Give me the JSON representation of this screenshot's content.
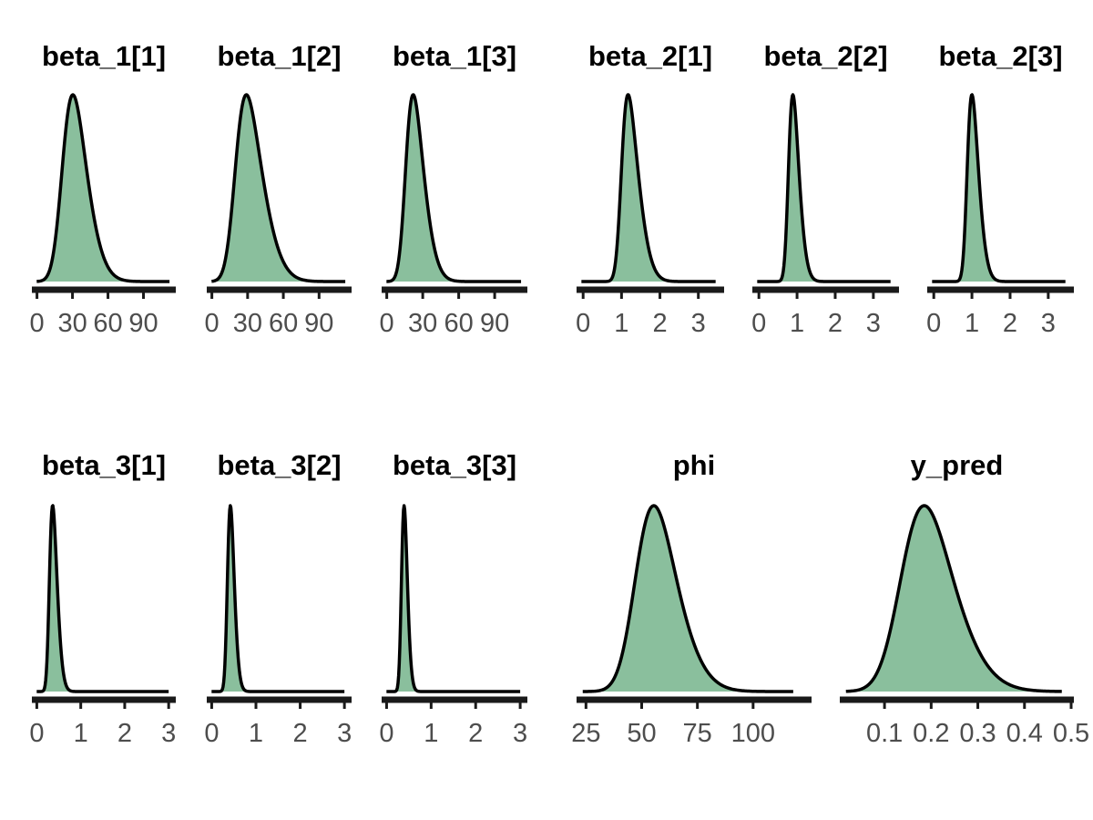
{
  "style": {
    "fill_color": "#8abf9d",
    "line_color": "#000000",
    "axis_color": "#1a1a1a",
    "tick_label_color": "#4d4d4d"
  },
  "chart_data": [
    {
      "type": "area",
      "title": "beta_1[1]",
      "xlim": [
        -2,
        115
      ],
      "ticks": [
        0,
        30,
        60,
        90
      ],
      "tick_labels": [
        "0",
        "30",
        "60",
        "90"
      ],
      "density": {
        "type": "skewnormal",
        "loc": 22,
        "scale": 16,
        "alpha": 2.2,
        "tail_end": 112
      }
    },
    {
      "type": "area",
      "title": "beta_1[2]",
      "xlim": [
        -2,
        115
      ],
      "ticks": [
        0,
        30,
        60,
        90
      ],
      "tick_labels": [
        "0",
        "30",
        "60",
        "90"
      ],
      "density": {
        "type": "skewnormal",
        "loc": 20,
        "scale": 18,
        "alpha": 2.6,
        "tail_end": 112
      }
    },
    {
      "type": "area",
      "title": "beta_1[3]",
      "xlim": [
        -2,
        115
      ],
      "ticks": [
        0,
        30,
        60,
        90
      ],
      "tick_labels": [
        "0",
        "30",
        "60",
        "90"
      ],
      "density": {
        "type": "skewnormal",
        "loc": 16,
        "scale": 12,
        "alpha": 2.5,
        "tail_end": 112
      }
    },
    {
      "type": "area",
      "title": "beta_2[1]",
      "xlim": [
        -0.1,
        3.6
      ],
      "ticks": [
        0,
        1,
        2,
        3
      ],
      "tick_labels": [
        "0",
        "1",
        "2",
        "3"
      ],
      "density": {
        "type": "skewnormal",
        "loc": 1.0,
        "scale": 0.36,
        "alpha": 3.0,
        "tail_end": 3.45
      }
    },
    {
      "type": "area",
      "title": "beta_2[2]",
      "xlim": [
        -0.1,
        3.6
      ],
      "ticks": [
        0,
        1,
        2,
        3
      ],
      "tick_labels": [
        "0",
        "1",
        "2",
        "3"
      ],
      "density": {
        "type": "skewnormal",
        "loc": 0.78,
        "scale": 0.22,
        "alpha": 2.5,
        "tail_end": 3.45
      }
    },
    {
      "type": "area",
      "title": "beta_2[3]",
      "xlim": [
        -0.1,
        3.6
      ],
      "ticks": [
        0,
        1,
        2,
        3
      ],
      "tick_labels": [
        "0",
        "1",
        "2",
        "3"
      ],
      "density": {
        "type": "skewnormal",
        "loc": 0.88,
        "scale": 0.24,
        "alpha": 2.6,
        "tail_end": 3.45
      }
    },
    {
      "type": "area",
      "title": "beta_3[1]",
      "xlim": [
        -0.05,
        3.1
      ],
      "ticks": [
        0,
        1,
        2,
        3
      ],
      "tick_labels": [
        "0",
        "1",
        "2",
        "3"
      ],
      "density": {
        "type": "skewnormal",
        "loc": 0.29,
        "scale": 0.14,
        "alpha": 2.5,
        "tail_end": 3.0
      }
    },
    {
      "type": "area",
      "title": "beta_3[2]",
      "xlim": [
        -0.05,
        3.1
      ],
      "ticks": [
        0,
        1,
        2,
        3
      ],
      "tick_labels": [
        "0",
        "1",
        "2",
        "3"
      ],
      "density": {
        "type": "skewnormal",
        "loc": 0.36,
        "scale": 0.12,
        "alpha": 2.2,
        "tail_end": 3.0
      }
    },
    {
      "type": "area",
      "title": "beta_3[3]",
      "xlim": [
        -0.05,
        3.1
      ],
      "ticks": [
        0,
        1,
        2,
        3
      ],
      "tick_labels": [
        "0",
        "1",
        "2",
        "3"
      ],
      "density": {
        "type": "skewnormal",
        "loc": 0.34,
        "scale": 0.1,
        "alpha": 2.0,
        "tail_end": 3.0
      }
    },
    {
      "type": "area",
      "title": "phi",
      "xlim": [
        22,
        125
      ],
      "ticks": [
        25,
        50,
        75,
        100
      ],
      "tick_labels": [
        "25",
        "50",
        "75",
        "100"
      ],
      "density": {
        "type": "skewnormal",
        "loc": 48,
        "scale": 14,
        "alpha": 2.0,
        "tail_end": 118
      }
    },
    {
      "type": "area",
      "title": "y_pred",
      "xlim": [
        0.01,
        0.5
      ],
      "ticks": [
        0.1,
        0.2,
        0.3,
        0.4,
        0.5
      ],
      "tick_labels": [
        "0.1",
        "0.2",
        "0.3",
        "0.4",
        "0.5"
      ],
      "density": {
        "type": "skewnormal",
        "loc": 0.14,
        "scale": 0.085,
        "alpha": 2.0,
        "tail_end": 0.48
      }
    }
  ]
}
